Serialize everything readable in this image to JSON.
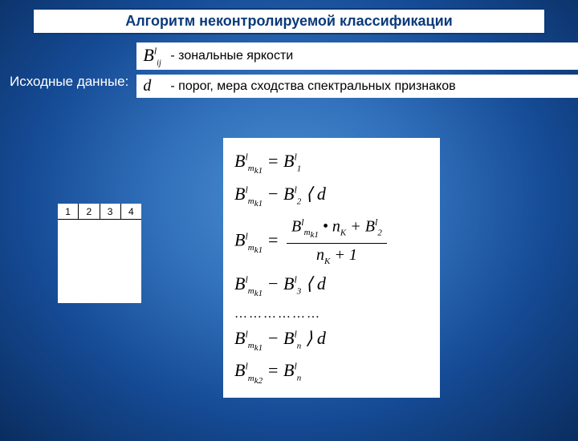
{
  "title": "Алгоритм неконтролируемой классификации",
  "source_label": "Исходные данные:",
  "def1": {
    "dash": "- ",
    "text": "зональные яркости"
  },
  "def2": {
    "dash": "- ",
    "text": "порог, мера сходства спектральных признаков"
  },
  "grid": {
    "c1": "1",
    "c2": "2",
    "c3": "3",
    "c4": "4"
  },
  "formulas": {
    "dots": "………………"
  },
  "colors": {
    "title_border": "#0a3a7a",
    "bg_center": "#4a8fd4",
    "bg_edge": "#0a2d5f",
    "white": "#ffffff"
  }
}
